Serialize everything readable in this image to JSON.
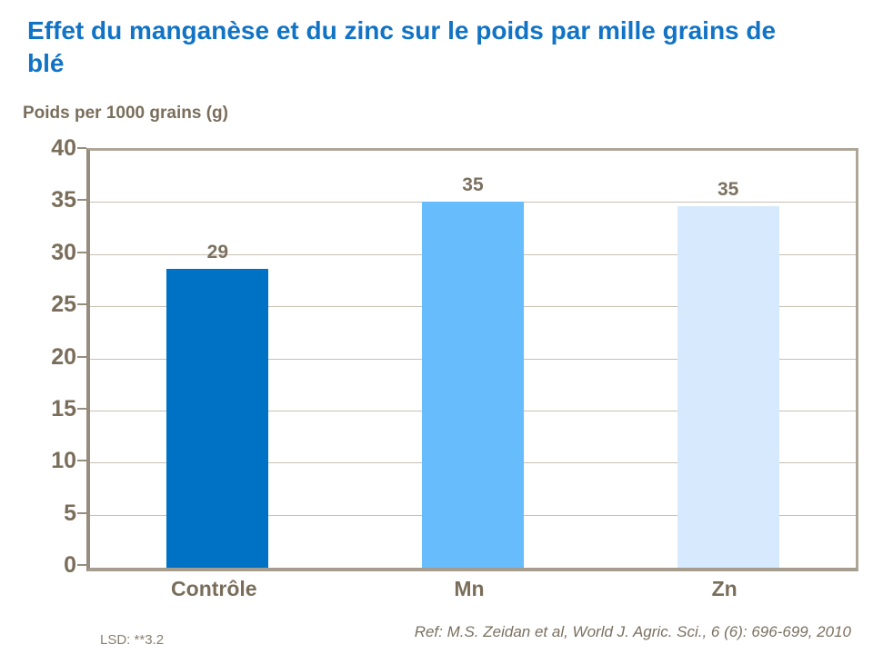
{
  "slide": {
    "title": "Effet du manganèse et du zinc sur le poids par mille grains de blé",
    "footnote_left": "LSD: **3.2",
    "footnote_right": "Ref: M.S. Zeidan et al, World J. Agric. Sci., 6 (6): 696-699, 2010"
  },
  "colors": {
    "title_text": "#1173C5",
    "axis_text": "#7A6E5B",
    "value_label_text": "#7C7160",
    "gridline": "#C8C1B4",
    "axis_line": "#968D7F",
    "frame_line": "#AFA698",
    "footnote_text": "#8A8070",
    "ref_text": "#7B7060"
  },
  "chart_data": {
    "type": "bar",
    "title": "Effet du manganèse et du zinc sur le poids par mille grains de blé",
    "categories": [
      "Contrôle",
      "Mn",
      "Zn"
    ],
    "values": [
      29,
      35,
      35
    ],
    "rendered_values": [
      28.7,
      35.1,
      34.65
    ],
    "bar_colors": [
      "#0072C6",
      "#67BCFB",
      "#D7E9FC"
    ],
    "xlabel": "",
    "ylabel": "Poids per 1000 grains (g)",
    "ylim": [
      0,
      40
    ],
    "yticks": [
      0,
      5,
      10,
      15,
      20,
      25,
      30,
      35,
      40
    ],
    "grid": true,
    "legend": false,
    "value_labels_shown": true
  }
}
